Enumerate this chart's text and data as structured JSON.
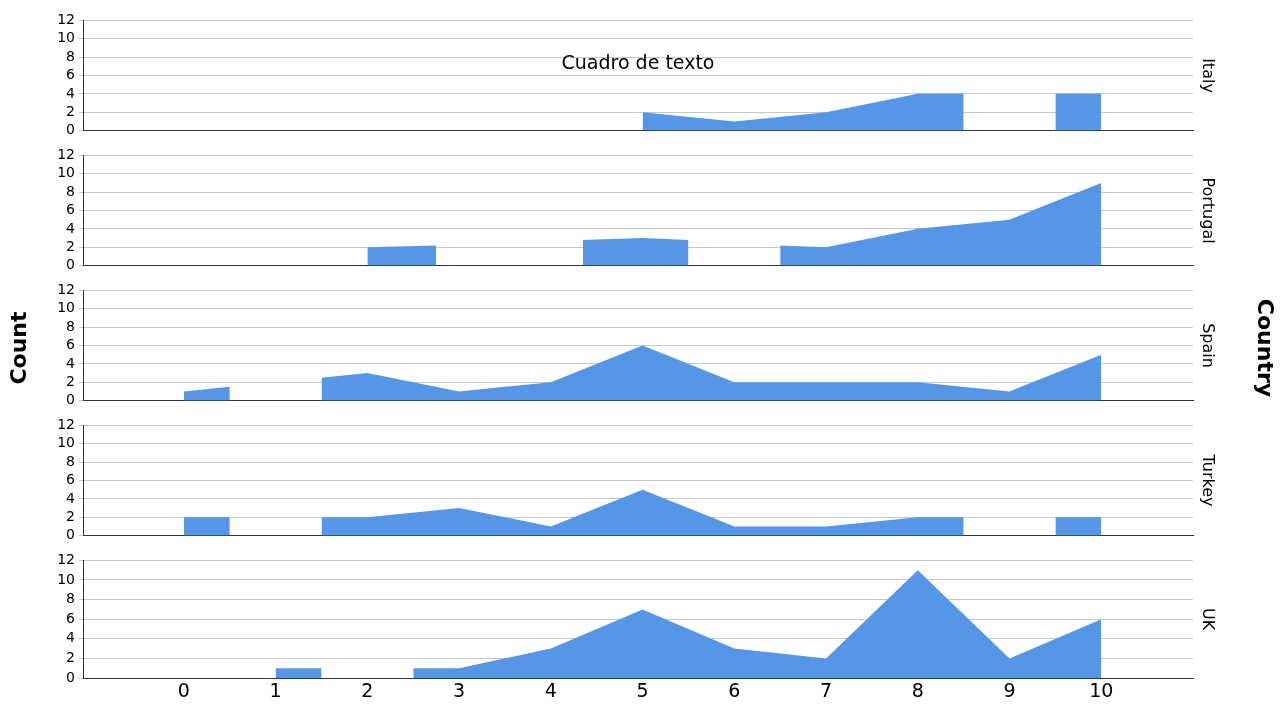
{
  "chart_data": [
    {
      "type": "area",
      "title": "Italy",
      "annotations": [
        "Cuadro de texto"
      ],
      "x": [
        5,
        6,
        7,
        8,
        8.5,
        9,
        9.5,
        10
      ],
      "values": [
        2,
        1,
        2,
        4,
        4,
        null,
        4,
        4
      ],
      "color": "#5596e6",
      "xlim": [
        -1.1,
        11
      ],
      "xticks": [
        0,
        1,
        2,
        3,
        4,
        5,
        6,
        7,
        8,
        9,
        10
      ],
      "ylim": [
        0,
        12
      ],
      "yticks": [
        0,
        2,
        4,
        6,
        8,
        10,
        12
      ],
      "grid": "y",
      "tick_labels": "y"
    },
    {
      "type": "area",
      "title": "Portugal",
      "x": [
        2,
        2.75,
        3.5,
        4.35,
        5,
        5.5,
        6,
        6.5,
        7,
        8,
        9,
        10
      ],
      "values": [
        2,
        2.2,
        null,
        2.8,
        3,
        2.8,
        null,
        2.2,
        2,
        4,
        5,
        9
      ],
      "color": "#5596e6",
      "xlim": [
        -1.1,
        11
      ],
      "xticks": [
        0,
        1,
        2,
        3,
        4,
        5,
        6,
        7,
        8,
        9,
        10
      ],
      "ylim": [
        0,
        12
      ],
      "yticks": [
        0,
        2,
        4,
        6,
        8,
        10,
        12
      ],
      "grid": "y",
      "tick_labels": "y"
    },
    {
      "type": "area",
      "title": "Spain",
      "ylabel": "Count",
      "y2label": "Country",
      "x": [
        0,
        0.5,
        1,
        1.5,
        2,
        3,
        4,
        5,
        6,
        7,
        8,
        9,
        10
      ],
      "values": [
        1,
        1.5,
        null,
        2.5,
        3,
        1,
        2,
        6,
        2,
        2,
        2,
        1,
        5
      ],
      "color": "#5596e6",
      "xlim": [
        -1.1,
        11
      ],
      "xticks": [
        0,
        1,
        2,
        3,
        4,
        5,
        6,
        7,
        8,
        9,
        10
      ],
      "ylim": [
        0,
        12
      ],
      "yticks": [
        0,
        2,
        4,
        6,
        8,
        10,
        12
      ],
      "grid": "y",
      "tick_labels": "y"
    },
    {
      "type": "area",
      "title": "Turkey",
      "x": [
        0,
        0.5,
        1,
        1.5,
        2,
        3,
        4,
        5,
        6,
        7,
        8,
        8.5,
        9,
        9.5,
        10
      ],
      "values": [
        2,
        2,
        null,
        2,
        2,
        3,
        1,
        5,
        1,
        1,
        2,
        2,
        null,
        2,
        2
      ],
      "color": "#5596e6",
      "xlim": [
        -1.1,
        11
      ],
      "xticks": [
        0,
        1,
        2,
        3,
        4,
        5,
        6,
        7,
        8,
        9,
        10
      ],
      "ylim": [
        0,
        12
      ],
      "yticks": [
        0,
        2,
        4,
        6,
        8,
        10,
        12
      ],
      "grid": "y",
      "tick_labels": "y"
    },
    {
      "type": "area",
      "title": "UK",
      "x": [
        1,
        1.5,
        2,
        2.5,
        3,
        4,
        5,
        6,
        7,
        8,
        9,
        10
      ],
      "values": [
        1,
        1,
        null,
        1,
        1,
        3,
        7,
        3,
        2,
        11,
        2,
        6
      ],
      "color": "#5596e6",
      "xlim": [
        -1.1,
        11
      ],
      "xticks": [
        0,
        1,
        2,
        3,
        4,
        5,
        6,
        7,
        8,
        9,
        10
      ],
      "ylim": [
        0,
        12
      ],
      "yticks": [
        0,
        2,
        4,
        6,
        8,
        10,
        12
      ],
      "grid": "y"
    }
  ]
}
